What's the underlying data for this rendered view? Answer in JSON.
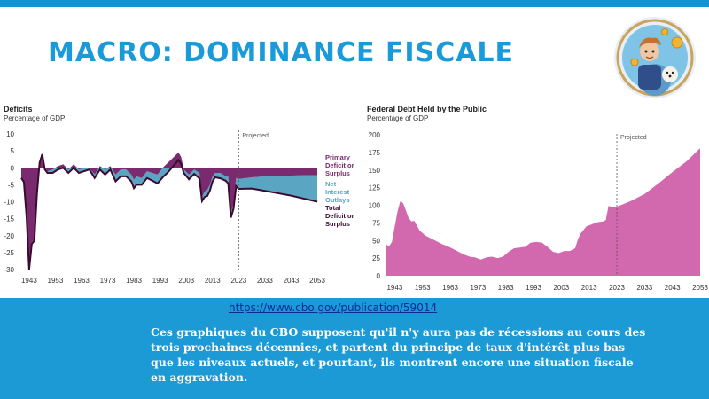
{
  "slide": {
    "title": "MACRO: DOMINANCE FISCALE",
    "logo_icon": "crypto-mascot-logo-icon",
    "source_link": "https://www.cbo.gov/publication/59014",
    "body_text": "Ces graphiques du CBO supposent qu'il n'y aura pas de récessions au cours des trois prochaines décennies, et partent du principe de taux d'intérêt plus bas que les niveaux actuels, et pourtant, ils montrent encore une situation fiscale en aggravation.",
    "colors": {
      "accent": "#1b9ad6",
      "title": "#1a9ad8",
      "link": "#0b2a9a"
    }
  },
  "chart_data": [
    {
      "type": "area",
      "title": "Deficits",
      "subtitle": "Percentage of GDP",
      "projected_label": "Projected",
      "projected_from": 2023,
      "xlim": [
        1940,
        2054
      ],
      "ylim": [
        -30,
        10
      ],
      "x_ticks": [
        1943,
        1953,
        1963,
        1973,
        1983,
        1993,
        2003,
        2013,
        2023,
        2033,
        2043,
        2053
      ],
      "y_ticks": [
        10,
        5,
        0,
        -5,
        -10,
        -15,
        -20,
        -25,
        -30
      ],
      "x": [
        1940,
        1941,
        1942,
        1943,
        1944,
        1945,
        1946,
        1947,
        1948,
        1949,
        1950,
        1952,
        1954,
        1956,
        1958,
        1960,
        1962,
        1964,
        1966,
        1968,
        1970,
        1972,
        1974,
        1976,
        1978,
        1980,
        1982,
        1983,
        1984,
        1986,
        1988,
        1990,
        1992,
        1994,
        1996,
        1998,
        2000,
        2001,
        2002,
        2004,
        2006,
        2008,
        2009,
        2010,
        2011,
        2012,
        2013,
        2014,
        2016,
        2018,
        2019,
        2020,
        2021,
        2022,
        2023,
        2028,
        2033,
        2038,
        2043,
        2048,
        2053
      ],
      "series": [
        {
          "name": "Primary Deficit or Surplus",
          "color": "#7a2a6e",
          "values": [
            -3,
            -4,
            -14,
            -30,
            -22,
            -21,
            -7,
            2,
            4,
            0,
            -1,
            -0.5,
            0.5,
            1,
            -0.5,
            1,
            -0.5,
            0,
            0,
            -2,
            0.5,
            -0.5,
            0.5,
            -2,
            -0.5,
            -0.5,
            -2,
            -3.5,
            -2.5,
            -3,
            -1,
            -1.5,
            -2,
            0,
            1.5,
            3,
            4.5,
            3.2,
            -0.5,
            -2,
            -0.5,
            -1.5,
            -8.5,
            -7,
            -6.5,
            -5,
            -2.5,
            -1.5,
            -1.5,
            -2.5,
            -2.5,
            -13.5,
            -10.5,
            -3,
            -3.3,
            -2.8,
            -2.5,
            -2.3,
            -2.3,
            -2.2,
            -2.2
          ]
        },
        {
          "name": "Net Interest Outlays",
          "color": "#5aa6c2"
        },
        {
          "name": "Total Deficit or Surplus",
          "color": "#3a0a30",
          "values": [
            -3,
            -4.2,
            -14.2,
            -30,
            -22.5,
            -21.5,
            -7.5,
            1.5,
            4,
            -0.5,
            -1.5,
            -1.5,
            -0.5,
            0,
            -1.5,
            0,
            -1.5,
            -1,
            -0.5,
            -3,
            -0.5,
            -2,
            -0.5,
            -4,
            -2.5,
            -2.5,
            -4,
            -6,
            -5,
            -5,
            -3,
            -3.8,
            -4.6,
            -2.8,
            -1.3,
            0.5,
            2.3,
            1.2,
            -1.5,
            -3.4,
            -1.8,
            -3.1,
            -9.8,
            -8.6,
            -8.3,
            -6.7,
            -4,
            -2.8,
            -3.1,
            -3.8,
            -4.6,
            -14.7,
            -12.1,
            -5.4,
            -6.2,
            -6.1,
            -6.8,
            -7.5,
            -8.2,
            -9.1,
            -10
          ]
        }
      ]
    },
    {
      "type": "area",
      "title": "Federal Debt Held by the Public",
      "subtitle": "Percentage of GDP",
      "projected_label": "Projected",
      "projected_from": 2023,
      "xlim": [
        1940,
        2053
      ],
      "ylim": [
        0,
        200
      ],
      "x_ticks": [
        1943,
        1953,
        1963,
        1973,
        1983,
        1993,
        2003,
        2013,
        2023,
        2033,
        2043,
        2053
      ],
      "y_ticks": [
        200,
        175,
        150,
        125,
        100,
        75,
        50,
        25,
        0
      ],
      "series": [
        {
          "name": "",
          "color": "#d268ad",
          "x": [
            1940,
            1941,
            1942,
            1943,
            1944,
            1945,
            1946,
            1947,
            1948,
            1949,
            1950,
            1952,
            1954,
            1956,
            1958,
            1960,
            1962,
            1964,
            1966,
            1968,
            1970,
            1972,
            1974,
            1976,
            1978,
            1980,
            1982,
            1984,
            1986,
            1988,
            1990,
            1992,
            1994,
            1996,
            1998,
            2000,
            2002,
            2004,
            2006,
            2008,
            2009,
            2010,
            2011,
            2012,
            2014,
            2016,
            2018,
            2019,
            2020,
            2021,
            2022,
            2023,
            2028,
            2033,
            2038,
            2043,
            2048,
            2053
          ],
          "values": [
            44,
            42,
            48,
            70,
            91,
            106,
            103,
            93,
            82,
            77,
            78,
            64,
            57,
            53,
            49,
            45,
            42,
            38,
            34,
            30,
            27,
            26,
            23,
            26,
            27,
            25,
            27,
            34,
            39,
            40,
            41,
            47,
            48,
            47,
            41,
            34,
            32,
            35,
            35,
            39,
            52,
            60,
            65,
            70,
            73,
            76,
            77,
            79,
            99,
            98,
            97,
            98,
            106,
            116,
            131,
            147,
            162,
            181
          ]
        }
      ]
    }
  ]
}
